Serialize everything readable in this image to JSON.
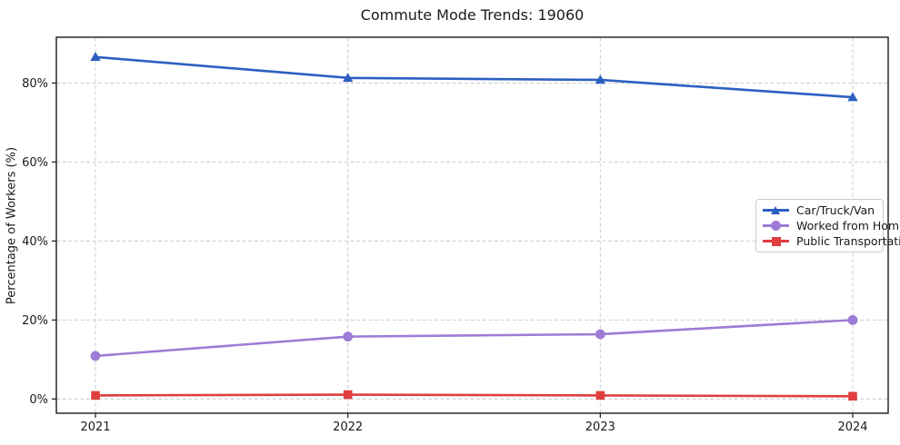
{
  "title": "Commute Mode Trends: 19060",
  "chart_data": {
    "type": "line",
    "title": "Commute Mode Trends: 19060",
    "xlabel": "",
    "ylabel": "Percentage of Workers (%)",
    "x": [
      "2021",
      "2022",
      "2023",
      "2024"
    ],
    "series": [
      {
        "name": "Car/Truck/Van",
        "color": "#2d5fc2",
        "marker": "triangle-up",
        "values": [
          86.6,
          81.3,
          80.8,
          76.4
        ]
      },
      {
        "name": "Worked from Home",
        "color": "#9d7cd6",
        "marker": "circle",
        "values": [
          10.9,
          15.8,
          16.4,
          20.0
        ]
      },
      {
        "name": "Public Transportation",
        "color": "#e03e3e",
        "marker": "square",
        "values": [
          0.9,
          1.1,
          0.9,
          0.7
        ]
      }
    ],
    "yticks": {
      "values": [
        0,
        20,
        40,
        60,
        80
      ],
      "labels": [
        "0%",
        "20%",
        "40%",
        "60%",
        "80%"
      ]
    },
    "ylim": [
      -3.6,
      91.6
    ],
    "grid": true,
    "grid_color": "#cccccc",
    "spine_color": "#1a1a1a",
    "legend_position": "center right"
  }
}
